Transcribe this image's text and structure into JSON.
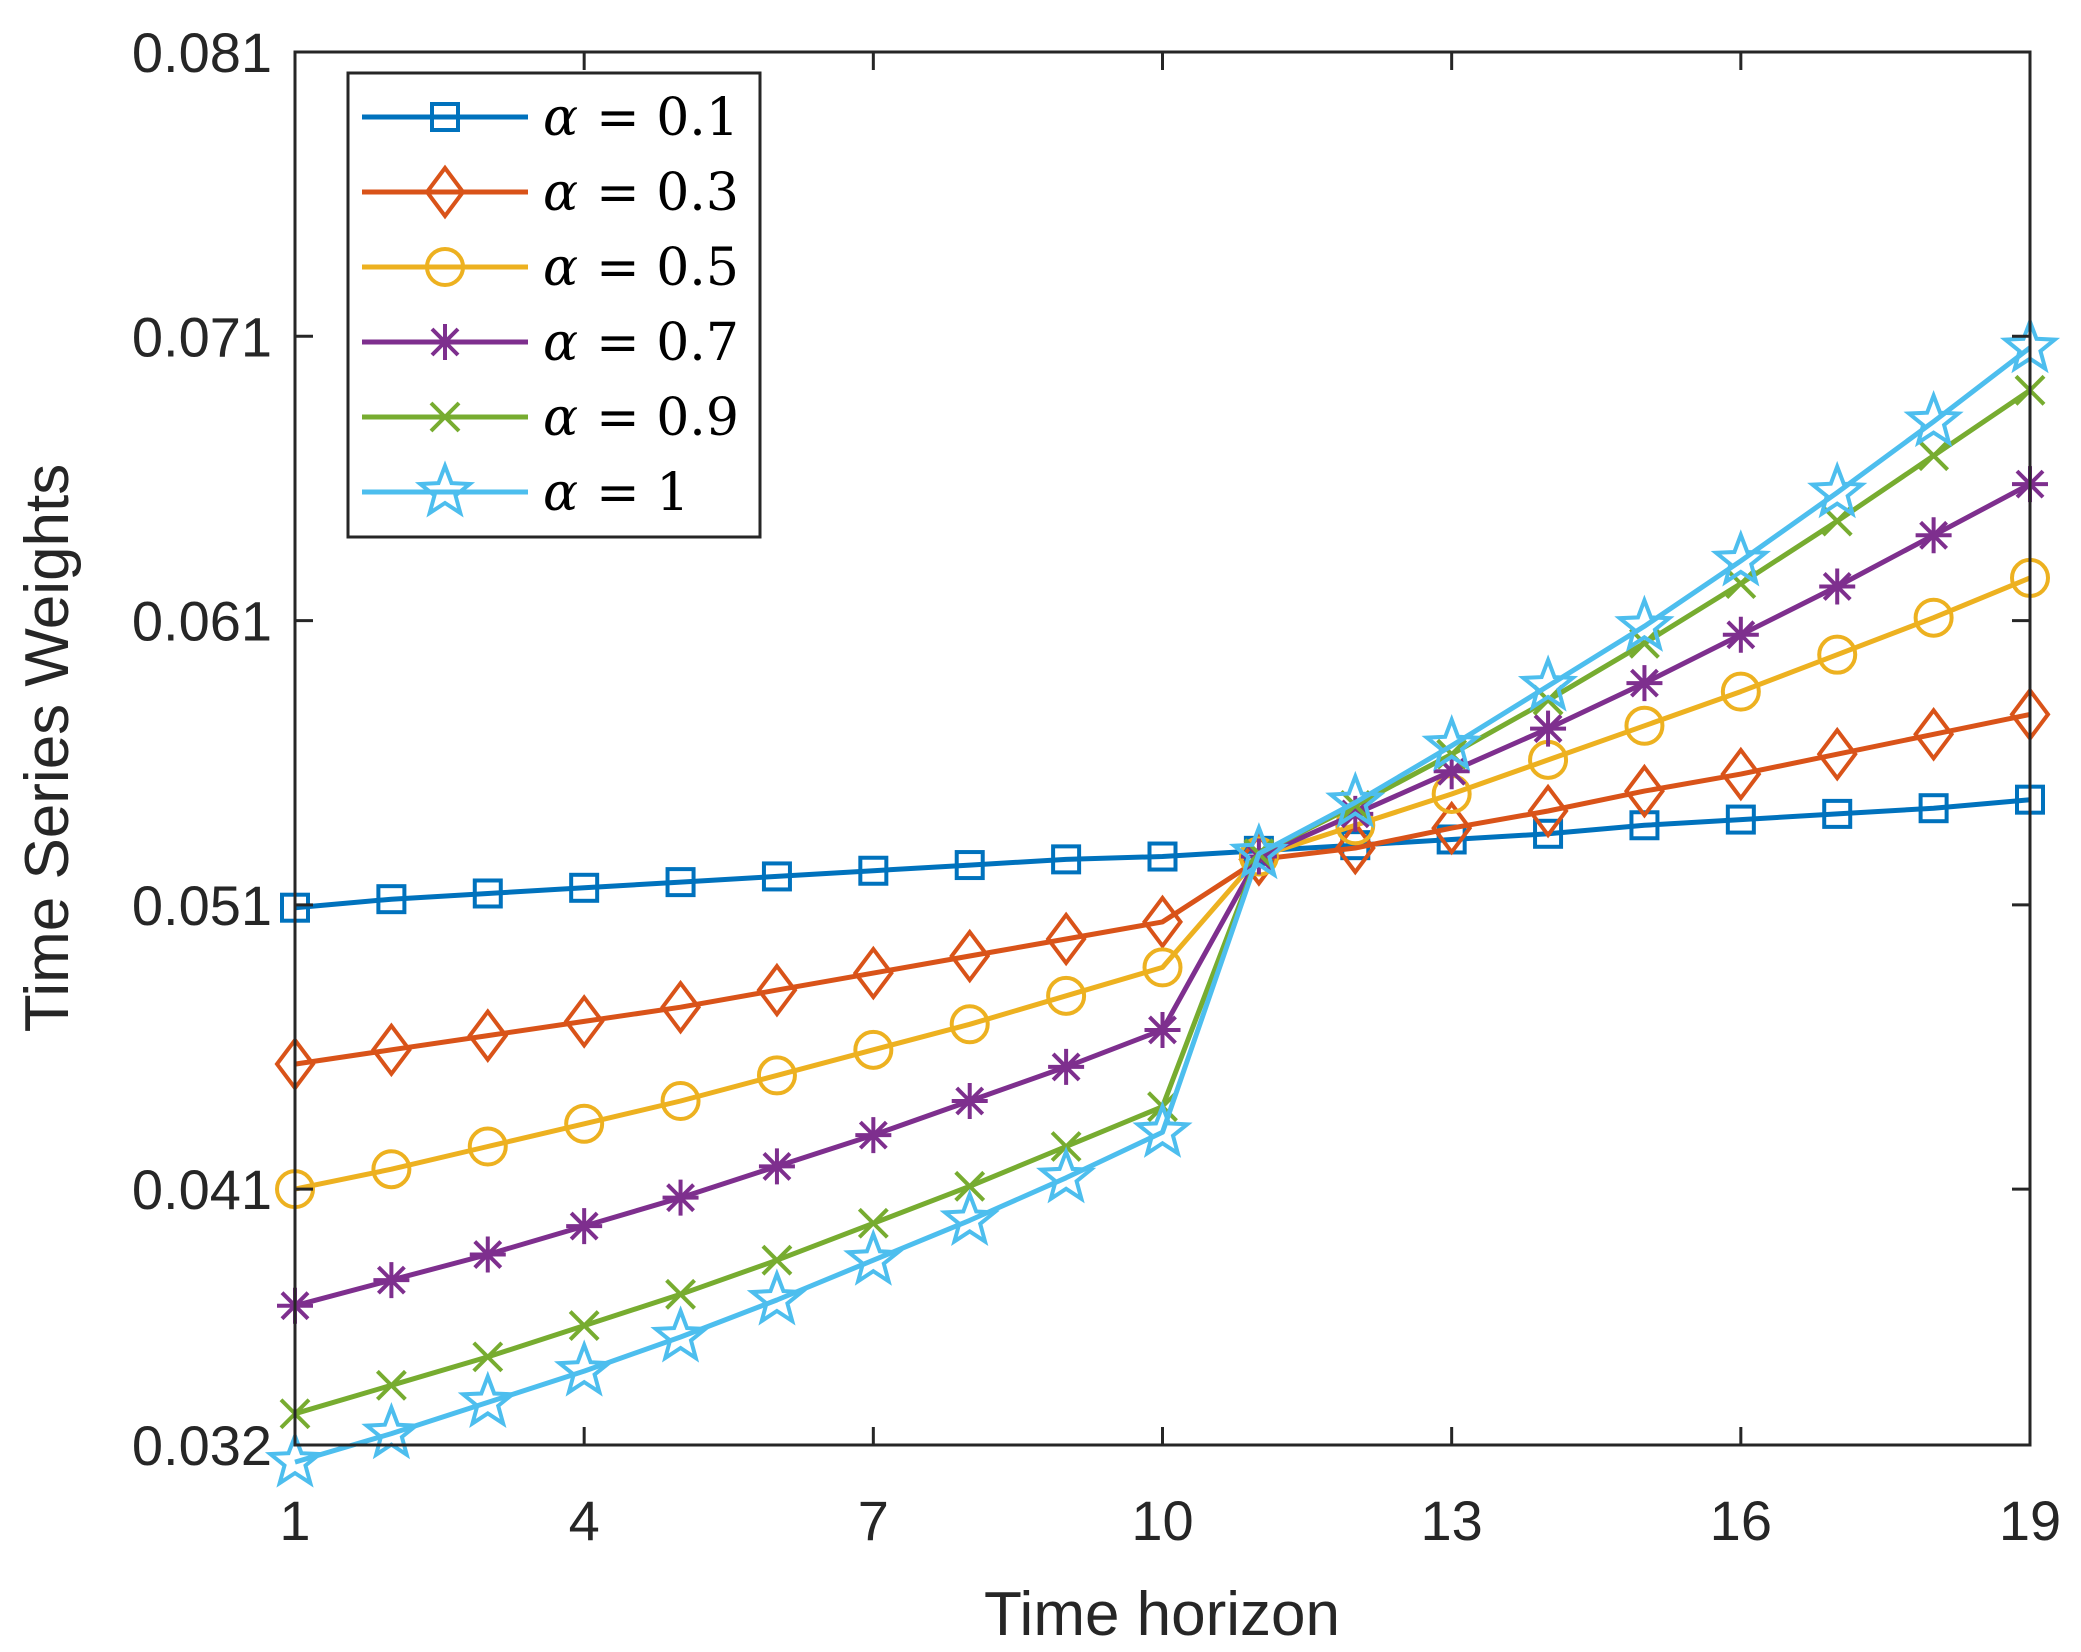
{
  "chart_data": {
    "type": "line",
    "xlabel": "Time horizon",
    "ylabel": "Time Series Weights",
    "xlim": [
      1,
      19
    ],
    "ylim": [
      0.032,
      0.081
    ],
    "xticks": [
      1,
      4,
      7,
      10,
      13,
      16,
      19
    ],
    "xtick_labels": [
      "1",
      "4",
      "7",
      "10",
      "13",
      "16",
      "19"
    ],
    "yticks": [
      0.032,
      0.041,
      0.051,
      0.061,
      0.071,
      0.081
    ],
    "ytick_labels": [
      "0.032",
      "0.041",
      "0.051",
      "0.061",
      "0.071",
      "0.081"
    ],
    "legend_position": "top-left",
    "x": [
      1,
      2,
      3,
      4,
      5,
      6,
      7,
      8,
      9,
      10,
      11,
      12,
      13,
      14,
      15,
      16,
      17,
      18,
      19
    ],
    "series": [
      {
        "name": "α = 0.1",
        "symbol": "α",
        "value_label": "= 0.1",
        "color": "#0072BD",
        "marker": "square",
        "values": [
          0.0509,
          0.0512,
          0.0514,
          0.0516,
          0.0518,
          0.052,
          0.0522,
          0.0524,
          0.0526,
          0.0527,
          0.0529,
          0.0531,
          0.0533,
          0.0535,
          0.0538,
          0.054,
          0.0542,
          0.0544,
          0.0547
        ]
      },
      {
        "name": "α = 0.3",
        "symbol": "α",
        "value_label": "= 0.3",
        "color": "#D95319",
        "marker": "diamond",
        "values": [
          0.0454,
          0.0459,
          0.0464,
          0.0469,
          0.0474,
          0.048,
          0.0486,
          0.0492,
          0.0498,
          0.0504,
          0.0526,
          0.053,
          0.0537,
          0.0543,
          0.055,
          0.0556,
          0.0563,
          0.057,
          0.0577
        ]
      },
      {
        "name": "α = 0.5",
        "symbol": "α",
        "value_label": "= 0.5",
        "color": "#EDB120",
        "marker": "circle",
        "values": [
          0.041,
          0.0417,
          0.0425,
          0.0433,
          0.0441,
          0.045,
          0.0459,
          0.0468,
          0.0478,
          0.0488,
          0.0527,
          0.0538,
          0.0549,
          0.0561,
          0.0573,
          0.0585,
          0.0598,
          0.0611,
          0.0625
        ]
      },
      {
        "name": "α = 0.7",
        "symbol": "α",
        "value_label": "= 0.7",
        "color": "#7E2F8E",
        "marker": "asterisk",
        "values": [
          0.0369,
          0.0378,
          0.0387,
          0.0397,
          0.0407,
          0.0418,
          0.0429,
          0.0441,
          0.0453,
          0.0466,
          0.0527,
          0.0542,
          0.0557,
          0.0572,
          0.0588,
          0.0605,
          0.0622,
          0.064,
          0.0658
        ]
      },
      {
        "name": "α = 0.9",
        "symbol": "α",
        "value_label": "= 0.9",
        "color": "#77AC30",
        "marker": "x",
        "values": [
          0.0331,
          0.0341,
          0.0351,
          0.0362,
          0.0373,
          0.0385,
          0.0398,
          0.0411,
          0.0425,
          0.0439,
          0.0528,
          0.0545,
          0.0563,
          0.0582,
          0.0602,
          0.0623,
          0.0645,
          0.0668,
          0.0691
        ]
      },
      {
        "name": "α = 1",
        "symbol": "α",
        "value_label": "= 1",
        "color": "#4DBEEE",
        "marker": "star",
        "values": [
          0.0314,
          0.0324,
          0.0335,
          0.0346,
          0.0358,
          0.0371,
          0.0385,
          0.0399,
          0.0414,
          0.043,
          0.0528,
          0.0546,
          0.0566,
          0.0587,
          0.0608,
          0.0631,
          0.0655,
          0.068,
          0.0706
        ]
      }
    ]
  }
}
